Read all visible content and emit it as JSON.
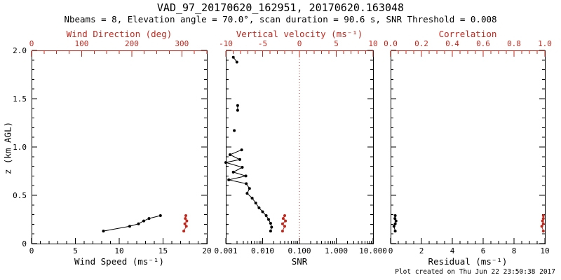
{
  "header": {
    "title": "VAD_97_20170620_162951, 20170620.163048",
    "subtitle": "Nbeams = 8, Elevation angle = 70.0°, scan duration = 90.6 s, SNR Threshold = 0.008"
  },
  "footer": {
    "created": "Plot created on Thu Jun 22 23:50:38 2017"
  },
  "colors": {
    "black": "#000000",
    "red": "#c0281e",
    "background": "#ffffff"
  },
  "chart_data": {
    "type": "line",
    "description": "Three vertical-profile panels from a Doppler lidar VAD scan: wind speed/direction, SNR/vertical velocity, residual/correlation versus height",
    "z_axis": {
      "label": "z (km AGL)",
      "range": [
        0,
        2
      ],
      "ticks": [
        0,
        0.5,
        1,
        1.5,
        2
      ],
      "tick_labels": [
        "0",
        "0.5",
        "1.0",
        "1.5",
        "2.0"
      ],
      "minor_step": 0.1
    },
    "panels": [
      {
        "name": "wind",
        "show_z_labels": true,
        "bottom_axis": {
          "label": "Wind Speed (ms⁻¹)",
          "scale": "linear",
          "range": [
            0,
            20
          ],
          "ticks": [
            0,
            5,
            10,
            15,
            20
          ],
          "tick_labels": [
            "0",
            "5",
            "10",
            "15",
            "20"
          ],
          "minor_step": 1,
          "color": "black"
        },
        "top_axis": {
          "label": "Wind Direction (deg)",
          "scale": "linear",
          "range": [
            0,
            350
          ],
          "ticks": [
            0,
            100,
            200,
            300
          ],
          "tick_labels": [
            "0",
            "100",
            "200",
            "300"
          ],
          "minor_step": 25,
          "color": "red"
        },
        "ref_lines": [],
        "series": [
          {
            "name": "wind-speed",
            "axis": "bottom",
            "color": "black",
            "line": true,
            "marker": true,
            "points": [
              [
                8.2,
                0.13
              ],
              [
                11.2,
                0.18
              ],
              [
                12.2,
                0.205
              ],
              [
                12.8,
                0.235
              ],
              [
                13.4,
                0.26
              ],
              [
                14.7,
                0.29
              ]
            ]
          },
          {
            "name": "wind-direction",
            "axis": "top",
            "color": "red",
            "line": true,
            "marker": true,
            "points": [
              [
                304,
                0.13
              ],
              [
                309,
                0.18
              ],
              [
                306,
                0.205
              ],
              [
                310,
                0.235
              ],
              [
                307,
                0.26
              ],
              [
                308,
                0.29
              ]
            ]
          }
        ]
      },
      {
        "name": "snr",
        "show_z_labels": false,
        "bottom_axis": {
          "label": "SNR",
          "scale": "log",
          "range": [
            0.001,
            10
          ],
          "ticks": [
            0.001,
            0.01,
            0.1,
            1,
            10
          ],
          "tick_labels": [
            "0.001",
            "0.010",
            "0.100",
            "1.000",
            "10.000"
          ],
          "color": "black"
        },
        "top_axis": {
          "label": "Vertical velocity (ms⁻¹)",
          "scale": "linear",
          "range": [
            -10,
            10
          ],
          "ticks": [
            -10,
            -5,
            0,
            5,
            10
          ],
          "tick_labels": [
            "-10",
            "-5",
            "0",
            "5",
            "10"
          ],
          "minor_step": 1,
          "color": "red"
        },
        "ref_lines": [
          {
            "axis": "top",
            "value": 0,
            "color": "red",
            "style": "dotted"
          }
        ],
        "series": [
          {
            "name": "snr-profile",
            "axis": "bottom",
            "color": "black",
            "line": true,
            "marker": true,
            "segments": [
              [
                [
                  0.0016,
                  1.93
                ],
                [
                  0.002,
                  1.88
                ]
              ],
              [
                [
                  0.0021,
                  1.43
                ],
                [
                  0.0021,
                  1.38
                ]
              ],
              [
                [
                  0.0017,
                  1.17
                ]
              ],
              [
                [
                  0.0027,
                  0.97
                ],
                [
                  0.0013,
                  0.92
                ],
                [
                  0.0024,
                  0.87
                ],
                [
                  0.001,
                  0.84
                ],
                [
                  0.0028,
                  0.79
                ],
                [
                  0.0016,
                  0.74
                ],
                [
                  0.0035,
                  0.7
                ],
                [
                  0.0012,
                  0.66
                ],
                [
                  0.0036,
                  0.62
                ],
                [
                  0.0044,
                  0.57
                ],
                [
                  0.0038,
                  0.52
                ],
                [
                  0.0052,
                  0.47
                ],
                [
                  0.0065,
                  0.42
                ],
                [
                  0.008,
                  0.37
                ],
                [
                  0.01,
                  0.33
                ],
                [
                  0.0125,
                  0.29
                ],
                [
                  0.0145,
                  0.25
                ],
                [
                  0.0165,
                  0.21
                ],
                [
                  0.0175,
                  0.17
                ],
                [
                  0.0165,
                  0.13
                ]
              ]
            ]
          },
          {
            "name": "vertical-velocity",
            "axis": "top",
            "color": "red",
            "line": true,
            "marker": true,
            "points": [
              [
                -2.3,
                0.13
              ],
              [
                -2.0,
                0.18
              ],
              [
                -2.3,
                0.205
              ],
              [
                -1.9,
                0.235
              ],
              [
                -2.2,
                0.26
              ],
              [
                -2.0,
                0.29
              ]
            ]
          }
        ]
      },
      {
        "name": "residual",
        "show_z_labels": false,
        "bottom_axis": {
          "label": "Residual (ms⁻¹)",
          "scale": "linear",
          "range": [
            0,
            10
          ],
          "ticks": [
            0,
            2,
            4,
            6,
            8,
            10
          ],
          "tick_labels": [
            "0",
            "2",
            "4",
            "6",
            "8",
            "10"
          ],
          "minor_step": 0.5,
          "color": "black"
        },
        "top_axis": {
          "label": "Correlation",
          "scale": "linear",
          "range": [
            0,
            1
          ],
          "ticks": [
            0,
            0.2,
            0.4,
            0.6,
            0.8,
            1
          ],
          "tick_labels": [
            "0.0",
            "0.2",
            "0.4",
            "0.6",
            "0.8",
            "1.0"
          ],
          "minor_step": 0.05,
          "color": "red"
        },
        "ref_lines": [],
        "series": [
          {
            "name": "residual",
            "axis": "bottom",
            "color": "black",
            "line": true,
            "marker": true,
            "points": [
              [
                0.3,
                0.13
              ],
              [
                0.22,
                0.18
              ],
              [
                0.3,
                0.205
              ],
              [
                0.35,
                0.235
              ],
              [
                0.28,
                0.26
              ],
              [
                0.3,
                0.29
              ]
            ]
          },
          {
            "name": "correlation",
            "axis": "top",
            "color": "red",
            "line": true,
            "marker": true,
            "points": [
              [
                0.99,
                0.13
              ],
              [
                0.98,
                0.18
              ],
              [
                0.99,
                0.205
              ],
              [
                0.985,
                0.235
              ],
              [
                0.99,
                0.26
              ],
              [
                0.99,
                0.29
              ]
            ]
          }
        ]
      }
    ]
  }
}
